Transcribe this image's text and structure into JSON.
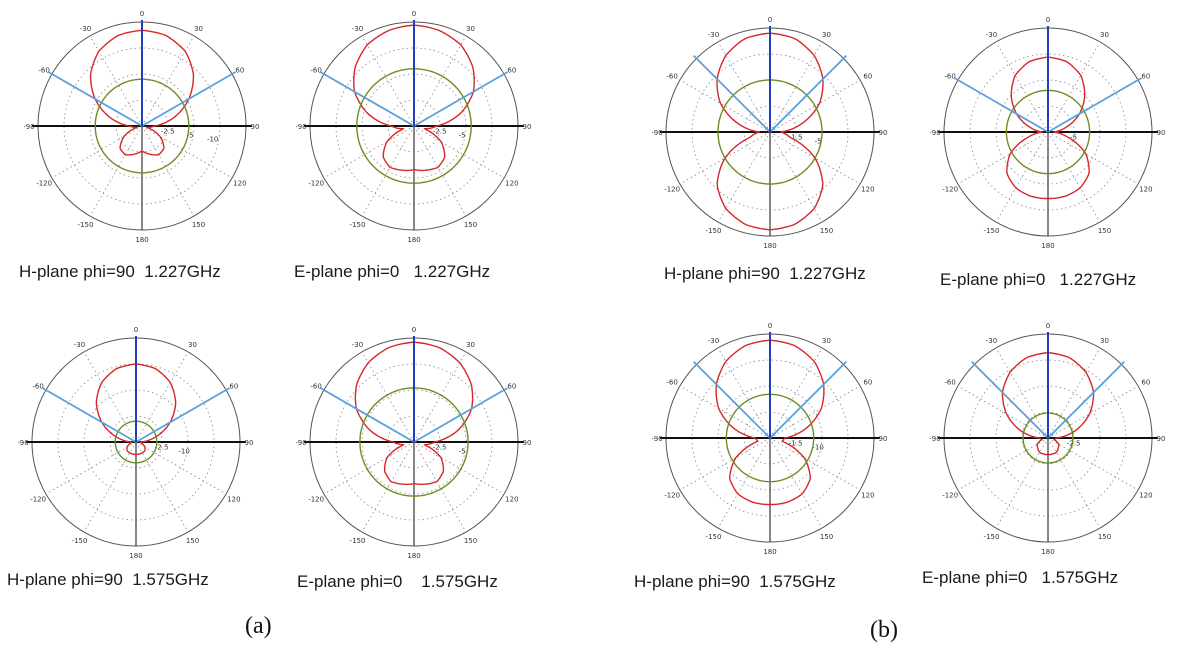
{
  "chart_data": [
    {
      "type": "polar",
      "caption": "H-plane phi=90  1.227GHz",
      "angle_labels": [
        "0",
        "30",
        "60",
        "90",
        "120",
        "150",
        "180",
        "-150",
        "-120",
        "-90",
        "-60",
        "-30"
      ],
      "radial_labels": [
        "-2.5",
        "-5",
        "-10"
      ],
      "beam_half_angle_deg": 60,
      "series": [
        {
          "color": "#d62728",
          "values": [
            0.92,
            0.9,
            0.83,
            0.7,
            0.52,
            0.32,
            0.12,
            0.05,
            0.2,
            0.3,
            0.32,
            0.28,
            0.24,
            0.28,
            0.32,
            0.3,
            0.2,
            0.05,
            0.12,
            0.32,
            0.52,
            0.7,
            0.83,
            0.9
          ]
        },
        {
          "color": "#6b8e23",
          "values": [
            0.45,
            0.45,
            0.45,
            0.45,
            0.45,
            0.45,
            0.45,
            0.45,
            0.45,
            0.45,
            0.45,
            0.45,
            0.45,
            0.45,
            0.45,
            0.45,
            0.45,
            0.45,
            0.45,
            0.45,
            0.45,
            0.45,
            0.45,
            0.45
          ]
        }
      ]
    },
    {
      "type": "polar",
      "caption": "E-plane phi=0   1.227GHz",
      "angle_labels": [
        "0",
        "30",
        "60",
        "90",
        "120",
        "150",
        "180",
        "-150",
        "-120",
        "-90",
        "-60",
        "-30"
      ],
      "radial_labels": [
        "-2.5",
        "-5"
      ],
      "beam_half_angle_deg": 60,
      "series": [
        {
          "color": "#d62728",
          "values": [
            0.97,
            0.95,
            0.9,
            0.8,
            0.66,
            0.46,
            0.22,
            0.1,
            0.3,
            0.42,
            0.46,
            0.44,
            0.42,
            0.44,
            0.46,
            0.42,
            0.3,
            0.1,
            0.22,
            0.46,
            0.66,
            0.8,
            0.9,
            0.95
          ]
        },
        {
          "color": "#6b8e23",
          "values": [
            0.55,
            0.55,
            0.55,
            0.55,
            0.55,
            0.55,
            0.55,
            0.55,
            0.55,
            0.55,
            0.55,
            0.55,
            0.55,
            0.55,
            0.55,
            0.55,
            0.55,
            0.55,
            0.55,
            0.55,
            0.55,
            0.55,
            0.55,
            0.55
          ]
        }
      ]
    },
    {
      "type": "polar",
      "caption": "H-plane phi=90  1.227GHz",
      "angle_labels": [
        "0",
        "30",
        "60",
        "90",
        "120",
        "150",
        "180",
        "-150",
        "-120",
        "-90",
        "-60",
        "-30"
      ],
      "radial_labels": [
        "-1.5",
        "-5"
      ],
      "beam_half_angle_deg": 45,
      "series": [
        {
          "color": "#d62728",
          "values": [
            0.95,
            0.93,
            0.85,
            0.72,
            0.55,
            0.32,
            0.1,
            0.2,
            0.5,
            0.72,
            0.85,
            0.92,
            0.94,
            0.92,
            0.85,
            0.72,
            0.5,
            0.2,
            0.1,
            0.32,
            0.55,
            0.72,
            0.85,
            0.93
          ]
        },
        {
          "color": "#6b8e23",
          "values": [
            0.5,
            0.5,
            0.5,
            0.5,
            0.5,
            0.5,
            0.5,
            0.5,
            0.5,
            0.5,
            0.5,
            0.5,
            0.5,
            0.5,
            0.5,
            0.5,
            0.5,
            0.5,
            0.5,
            0.5,
            0.5,
            0.5,
            0.5,
            0.5
          ]
        }
      ]
    },
    {
      "type": "polar",
      "caption": "E-plane phi=0   1.227GHz",
      "angle_labels": [
        "0",
        "30",
        "60",
        "90",
        "120",
        "150",
        "180",
        "-150",
        "-120",
        "-90",
        "-60",
        "-30"
      ],
      "radial_labels": [
        "-5"
      ],
      "beam_half_angle_deg": 60,
      "series": [
        {
          "color": "#d62728",
          "values": [
            0.72,
            0.7,
            0.63,
            0.5,
            0.35,
            0.18,
            0.05,
            0.2,
            0.42,
            0.56,
            0.62,
            0.64,
            0.64,
            0.64,
            0.62,
            0.56,
            0.42,
            0.2,
            0.05,
            0.18,
            0.35,
            0.5,
            0.63,
            0.7
          ]
        },
        {
          "color": "#6b8e23",
          "values": [
            0.4,
            0.4,
            0.4,
            0.4,
            0.4,
            0.4,
            0.4,
            0.4,
            0.4,
            0.4,
            0.4,
            0.4,
            0.4,
            0.4,
            0.4,
            0.4,
            0.4,
            0.4,
            0.4,
            0.4,
            0.4,
            0.4,
            0.4,
            0.4
          ]
        }
      ]
    },
    {
      "type": "polar",
      "caption": "H-plane phi=90  1.575GHz",
      "angle_labels": [
        "0",
        "30",
        "60",
        "90",
        "120",
        "150",
        "180",
        "-150",
        "-120",
        "-90",
        "-60",
        "-30"
      ],
      "radial_labels": [
        "-2.5",
        "-10"
      ],
      "beam_half_angle_deg": 60,
      "series": [
        {
          "color": "#d62728",
          "values": [
            0.75,
            0.73,
            0.66,
            0.54,
            0.38,
            0.2,
            0.04,
            0.06,
            0.1,
            0.12,
            0.12,
            0.12,
            0.12,
            0.12,
            0.12,
            0.12,
            0.1,
            0.06,
            0.04,
            0.2,
            0.38,
            0.54,
            0.66,
            0.73
          ]
        },
        {
          "color": "#6b8e23",
          "values": [
            0.2,
            0.2,
            0.2,
            0.2,
            0.2,
            0.2,
            0.2,
            0.2,
            0.2,
            0.2,
            0.2,
            0.2,
            0.2,
            0.2,
            0.2,
            0.2,
            0.2,
            0.2,
            0.2,
            0.2,
            0.2,
            0.2,
            0.2,
            0.2
          ]
        }
      ]
    },
    {
      "type": "polar",
      "caption": "E-plane phi=0    1.575GHz",
      "angle_labels": [
        "0",
        "30",
        "60",
        "90",
        "120",
        "150",
        "180",
        "-150",
        "-120",
        "-90",
        "-60",
        "-30"
      ],
      "radial_labels": [
        "-2.5",
        "-5"
      ],
      "beam_half_angle_deg": 60,
      "series": [
        {
          "color": "#d62728",
          "values": [
            0.96,
            0.94,
            0.88,
            0.78,
            0.64,
            0.44,
            0.2,
            0.1,
            0.3,
            0.4,
            0.44,
            0.42,
            0.4,
            0.42,
            0.44,
            0.4,
            0.3,
            0.1,
            0.2,
            0.44,
            0.64,
            0.78,
            0.88,
            0.94
          ]
        },
        {
          "color": "#6b8e23",
          "values": [
            0.52,
            0.52,
            0.52,
            0.52,
            0.52,
            0.52,
            0.52,
            0.52,
            0.52,
            0.52,
            0.52,
            0.52,
            0.52,
            0.52,
            0.52,
            0.52,
            0.52,
            0.52,
            0.52,
            0.52,
            0.52,
            0.52,
            0.52,
            0.52
          ]
        }
      ]
    },
    {
      "type": "polar",
      "caption": "H-plane phi=90  1.575GHz",
      "angle_labels": [
        "0",
        "30",
        "60",
        "90",
        "120",
        "150",
        "180",
        "-150",
        "-120",
        "-90",
        "-60",
        "-30"
      ],
      "radial_labels": [
        "-1.5",
        "-10"
      ],
      "beam_half_angle_deg": 45,
      "series": [
        {
          "color": "#d62728",
          "values": [
            0.94,
            0.92,
            0.85,
            0.73,
            0.57,
            0.36,
            0.14,
            0.12,
            0.38,
            0.55,
            0.62,
            0.64,
            0.64,
            0.64,
            0.62,
            0.55,
            0.38,
            0.12,
            0.14,
            0.36,
            0.57,
            0.73,
            0.85,
            0.92
          ]
        },
        {
          "color": "#6b8e23",
          "values": [
            0.42,
            0.42,
            0.42,
            0.42,
            0.42,
            0.42,
            0.42,
            0.42,
            0.42,
            0.42,
            0.42,
            0.42,
            0.42,
            0.42,
            0.42,
            0.42,
            0.42,
            0.42,
            0.42,
            0.42,
            0.42,
            0.42,
            0.42,
            0.42
          ]
        }
      ]
    },
    {
      "type": "polar",
      "caption": "E-plane phi=0   1.575GHz",
      "angle_labels": [
        "0",
        "30",
        "60",
        "90",
        "120",
        "150",
        "180",
        "-150",
        "-120",
        "-90",
        "-60",
        "-30"
      ],
      "radial_labels": [
        "-2.5"
      ],
      "beam_half_angle_deg": 45,
      "series": [
        {
          "color": "#d62728",
          "values": [
            0.82,
            0.8,
            0.73,
            0.62,
            0.46,
            0.27,
            0.08,
            0.06,
            0.12,
            0.14,
            0.16,
            0.16,
            0.16,
            0.16,
            0.16,
            0.14,
            0.12,
            0.06,
            0.08,
            0.27,
            0.46,
            0.62,
            0.73,
            0.8
          ]
        },
        {
          "color": "#6b8e23",
          "values": [
            0.24,
            0.24,
            0.24,
            0.24,
            0.24,
            0.24,
            0.24,
            0.24,
            0.24,
            0.24,
            0.24,
            0.24,
            0.24,
            0.24,
            0.24,
            0.24,
            0.24,
            0.24,
            0.24,
            0.24,
            0.24,
            0.24,
            0.24,
            0.24
          ]
        }
      ]
    }
  ],
  "panel_labels": [
    "(a)",
    "(b)"
  ]
}
